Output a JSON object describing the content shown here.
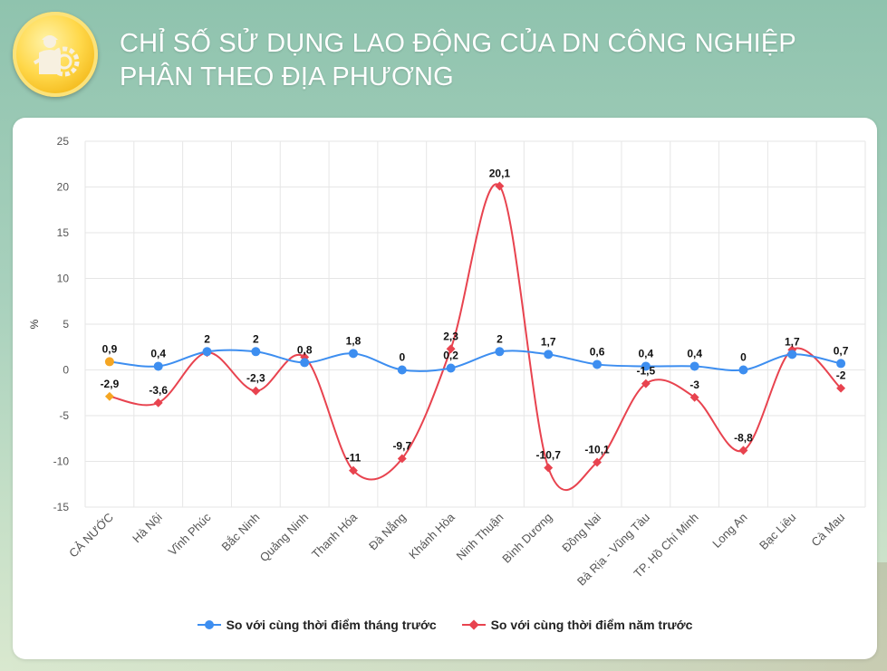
{
  "header": {
    "title": "CHỈ SỐ SỬ DỤNG LAO ĐỘNG CỦA DN CÔNG NGHIỆP PHÂN THEO ĐỊA PHƯƠNG",
    "icon": "worker-gear-icon"
  },
  "colors": {
    "series1": "#3d8ef0",
    "series2": "#e8434f",
    "highlight": "#f5a623",
    "grid": "#e6e6e6",
    "axis_text": "#555555"
  },
  "legend": {
    "series1_label": "So với cùng thời điểm tháng trước",
    "series2_label": "So với cùng thời điểm năm trước"
  },
  "chart_data": {
    "type": "line",
    "title": "CHỈ SỐ SỬ DỤNG LAO ĐỘNG CỦA DN CÔNG NGHIỆP PHÂN THEO ĐỊA PHƯƠNG",
    "xlabel": "",
    "ylabel": "%",
    "ylim": [
      -15,
      25
    ],
    "yticks": [
      25,
      20,
      15,
      10,
      5,
      0,
      -5,
      -10,
      -15
    ],
    "grid": true,
    "legend_position": "bottom",
    "categories": [
      "CẢ NƯỚC",
      "Hà Nội",
      "Vĩnh Phúc",
      "Bắc Ninh",
      "Quảng Ninh",
      "Thanh Hóa",
      "Đà Nẵng",
      "Khánh Hòa",
      "Ninh Thuận",
      "Bình Dương",
      "Đồng Nai",
      "Bà Rịa - Vũng Tàu",
      "TP. Hồ Chí Minh",
      "Long An",
      "Bạc Liêu",
      "Cà Mau"
    ],
    "series": [
      {
        "name": "So với cùng thời điểm tháng trước",
        "values": [
          0.9,
          0.4,
          2,
          2,
          0.8,
          1.8,
          0,
          0.2,
          2,
          1.7,
          0.6,
          0.4,
          0.4,
          0,
          1.7,
          0.7
        ],
        "labels": [
          "0,9",
          "0,4",
          "2",
          "2",
          "0,8",
          "1,8",
          "0",
          "0,2",
          "2",
          "1,7",
          "0,6",
          "0,4",
          "0,4",
          "0",
          "1,7",
          "0,7"
        ],
        "marker": "circle"
      },
      {
        "name": "So với cùng thời điểm năm trước",
        "values": [
          -2.9,
          -3.6,
          1.9,
          -2.3,
          1.4,
          -11,
          -9.7,
          2.3,
          20.1,
          -10.7,
          -10.1,
          -1.5,
          -3,
          -8.8,
          2.2,
          -2
        ],
        "labels": [
          "-2,9",
          "-3,6",
          "",
          "-2,3",
          "",
          "-11",
          "-9,7",
          "2,3",
          "20,1",
          "-10,7",
          "-10,1",
          "-1,5",
          "-3",
          "-8,8",
          "",
          "-2"
        ],
        "marker": "diamond"
      }
    ]
  }
}
